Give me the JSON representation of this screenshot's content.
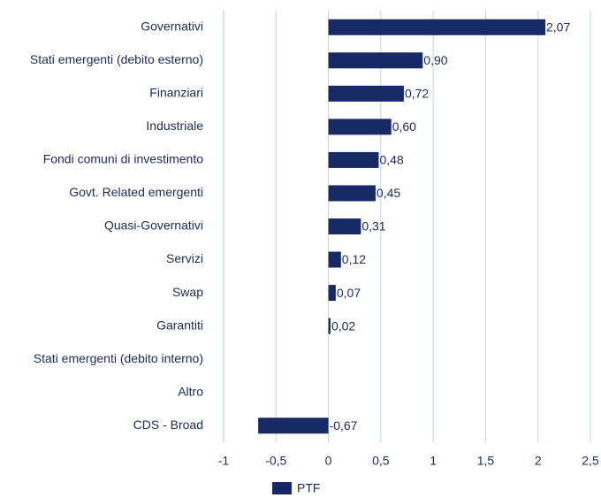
{
  "chart_data": {
    "type": "hbar",
    "categories": [
      "Governativi",
      "Stati emergenti (debito esterno)",
      "Finanziari",
      "Industriale",
      "Fondi comuni di investimento",
      "Govt. Related emergenti",
      "Quasi-Governativi",
      "Servizi",
      "Swap",
      "Garantiti",
      "Stati emergenti (debito interno)",
      "Altro",
      "CDS - Broad"
    ],
    "series": [
      {
        "name": "PTF",
        "color": "#172a66",
        "values": [
          2.07,
          0.9,
          0.72,
          0.6,
          0.48,
          0.45,
          0.31,
          0.12,
          0.07,
          0.02,
          null,
          null,
          -0.67
        ],
        "value_labels": [
          "2,07",
          "0,90",
          "0,72",
          "0,60",
          "0,48",
          "0,45",
          "0,31",
          "0,12",
          "0,07",
          "0,02",
          null,
          null,
          "-0,67"
        ]
      }
    ],
    "xlim": [
      -1,
      2.5
    ],
    "xticks": [
      -1,
      {
        "value": -0.5,
        "label": "-0,5"
      },
      0,
      {
        "value": 0.5,
        "label": "0,5"
      },
      1,
      {
        "value": 1.5,
        "label": "1,5"
      },
      2,
      {
        "value": 2.5,
        "label": "2,5"
      }
    ],
    "grid": true,
    "legend": "bottom"
  }
}
